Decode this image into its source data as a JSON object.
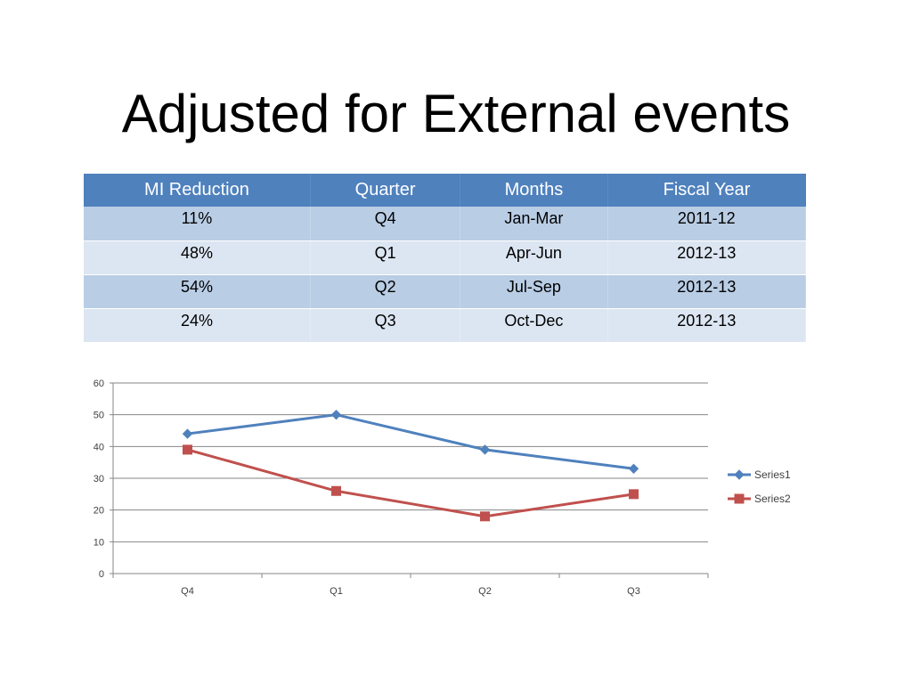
{
  "slide": {
    "title": "Adjusted for External events"
  },
  "table": {
    "headers": [
      "MI Reduction",
      "Quarter",
      "Months",
      "Fiscal Year"
    ],
    "rows": [
      [
        "11%",
        "Q4",
        "Jan-Mar",
        "2011-12"
      ],
      [
        "48%",
        "Q1",
        "Apr-Jun",
        "2012-13"
      ],
      [
        "54%",
        "Q2",
        "Jul-Sep",
        "2012-13"
      ],
      [
        "24%",
        "Q3",
        "Oct-Dec",
        "2012-13"
      ]
    ]
  },
  "colors": {
    "header": "#4f81bd",
    "row_dark": "#b9cde5",
    "row_light": "#dce6f2",
    "series1": "#4f81bd",
    "series2": "#c0504d"
  },
  "chart_data": {
    "type": "line",
    "title": "",
    "xlabel": "",
    "ylabel": "",
    "categories": [
      "Q4",
      "Q1",
      "Q2",
      "Q3"
    ],
    "series": [
      {
        "name": "Series1",
        "values": [
          44,
          50,
          39,
          33
        ],
        "color": "#4f81bd",
        "marker": "diamond"
      },
      {
        "name": "Series2",
        "values": [
          39,
          26,
          18,
          25
        ],
        "color": "#c0504d",
        "marker": "square"
      }
    ],
    "ylim": [
      0,
      60
    ],
    "yticks": [
      0,
      10,
      20,
      30,
      40,
      50,
      60
    ],
    "grid": true,
    "legend_position": "right"
  }
}
